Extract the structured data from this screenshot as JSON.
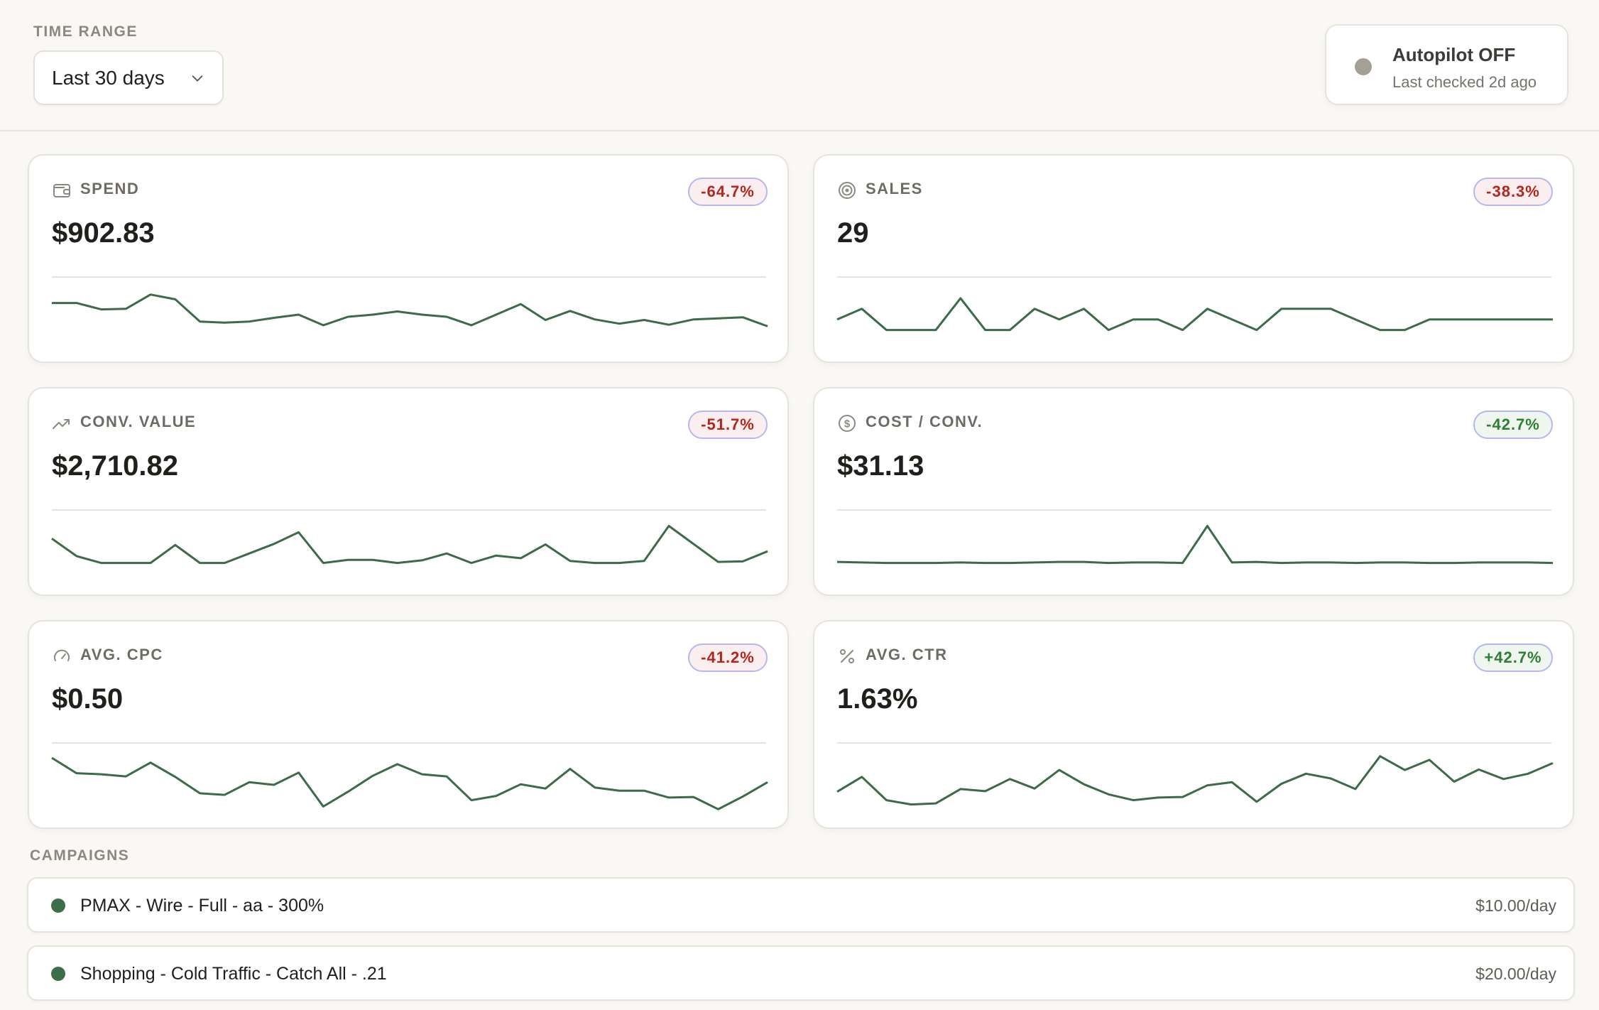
{
  "header": {
    "time_range_label": "TIME RANGE",
    "time_range_value": "Last 30 days",
    "autopilot_title": "Autopilot OFF",
    "autopilot_sub": "Last checked 2d ago"
  },
  "colors": {
    "line": "#3b6b47",
    "neg_text": "#b3261e",
    "pos_text": "#2e7d32",
    "campaign_dot": "#3d6e4a",
    "autopilot_dot": "#a49f97"
  },
  "metrics": [
    {
      "label": "SPEND",
      "value": "$902.83",
      "change": "-64.7%",
      "trend": "neg",
      "icon": "wallet-icon",
      "series": [
        0.51,
        0.51,
        0.39,
        0.4,
        0.67,
        0.58,
        0.16,
        0.14,
        0.16,
        0.23,
        0.29,
        0.09,
        0.25,
        0.29,
        0.35,
        0.29,
        0.25,
        0.09,
        0.29,
        0.49,
        0.19,
        0.36,
        0.2,
        0.12,
        0.19,
        0.1,
        0.2,
        0.22,
        0.24,
        0.07
      ]
    },
    {
      "label": "SALES",
      "value": "29",
      "change": "-38.3%",
      "trend": "neg",
      "icon": "target-icon",
      "series": [
        0.2,
        0.4,
        0.0,
        0.0,
        0.0,
        0.6,
        0.0,
        0.0,
        0.4,
        0.2,
        0.4,
        0.0,
        0.2,
        0.2,
        0.0,
        0.4,
        0.2,
        0.0,
        0.4,
        0.4,
        0.4,
        0.2,
        0.0,
        0.0,
        0.2,
        0.2,
        0.2,
        0.2,
        0.2,
        0.2
      ]
    },
    {
      "label": "CONV. VALUE",
      "value": "$2,710.82",
      "change": "-51.7%",
      "trend": "neg",
      "icon": "trending-up-icon",
      "series": [
        0.46,
        0.13,
        0.0,
        0.0,
        0.0,
        0.34,
        0.0,
        0.0,
        0.18,
        0.36,
        0.58,
        0.0,
        0.06,
        0.06,
        0.0,
        0.05,
        0.18,
        0.0,
        0.14,
        0.09,
        0.35,
        0.04,
        0.0,
        0.0,
        0.04,
        0.7,
        0.36,
        0.02,
        0.03,
        0.22
      ]
    },
    {
      "label": "COST / CONV.",
      "value": "$31.13",
      "change": "-42.7%",
      "trend": "pos",
      "icon": "dollar-circle-icon",
      "series": [
        0.02,
        0.01,
        0.0,
        0.0,
        0.0,
        0.01,
        0.0,
        0.0,
        0.01,
        0.02,
        0.02,
        0.0,
        0.01,
        0.01,
        0.0,
        0.7,
        0.01,
        0.02,
        0.0,
        0.01,
        0.01,
        0.0,
        0.01,
        0.01,
        0.0,
        0.0,
        0.01,
        0.01,
        0.01,
        0.0
      ]
    },
    {
      "label": "AVG. CPC",
      "value": "$0.50",
      "change": "-41.2%",
      "trend": "neg",
      "icon": "gauge-icon",
      "series": [
        0.72,
        0.43,
        0.41,
        0.37,
        0.63,
        0.36,
        0.05,
        0.02,
        0.26,
        0.21,
        0.44,
        -0.2,
        0.08,
        0.38,
        0.6,
        0.41,
        0.37,
        -0.08,
        0.0,
        0.22,
        0.14,
        0.51,
        0.16,
        0.1,
        0.1,
        -0.03,
        -0.02,
        -0.25,
        -0.01,
        0.26
      ]
    },
    {
      "label": "AVG. CTR",
      "value": "1.63%",
      "change": "+42.7%",
      "trend": "pos",
      "icon": "percent-icon",
      "series": [
        0.08,
        0.36,
        -0.08,
        -0.16,
        -0.14,
        0.13,
        0.09,
        0.32,
        0.14,
        0.49,
        0.22,
        0.03,
        -0.08,
        -0.03,
        -0.02,
        0.2,
        0.26,
        -0.11,
        0.23,
        0.42,
        0.33,
        0.13,
        0.75,
        0.49,
        0.68,
        0.27,
        0.5,
        0.32,
        0.42,
        0.62
      ]
    }
  ],
  "campaigns": {
    "section_label": "CAMPAIGNS",
    "items": [
      {
        "name": "PMAX - Wire - Full - aa - 300%",
        "budget": "$10.00/day"
      },
      {
        "name": "Shopping - Cold Traffic - Catch All - .21",
        "budget": "$20.00/day"
      }
    ]
  }
}
